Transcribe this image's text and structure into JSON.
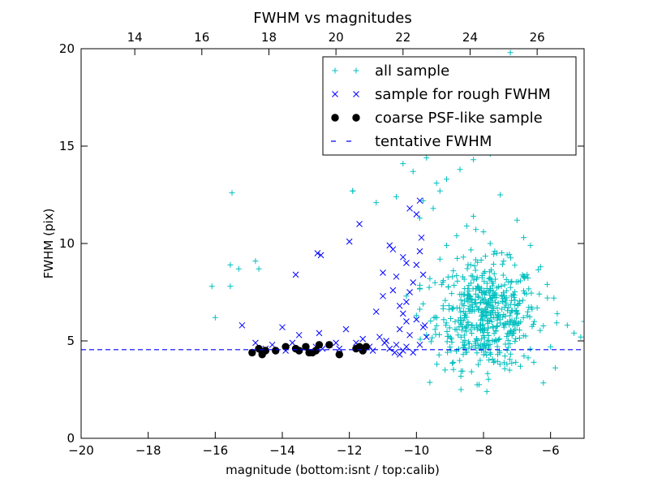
{
  "chart_data": {
    "type": "scatter",
    "title": "FWHM vs magnitudes",
    "xlabel": "magnitude (bottom:isnt / top:calib)",
    "ylabel": "FWHM (pix)",
    "xlim": [
      -20,
      -5
    ],
    "ylim": [
      0,
      20
    ],
    "top_xlim": [
      12.4,
      27.4
    ],
    "x_ticks": [
      -20,
      -18,
      -16,
      -14,
      -12,
      -10,
      -8,
      -6
    ],
    "x_tick_labels": [
      "−20",
      "−18",
      "−16",
      "−14",
      "−12",
      "−10",
      "−8",
      "−6"
    ],
    "top_ticks": [
      14,
      16,
      18,
      20,
      22,
      24,
      26
    ],
    "top_tick_labels": [
      "14",
      "16",
      "18",
      "20",
      "22",
      "24",
      "26"
    ],
    "y_ticks": [
      0,
      5,
      10,
      15,
      20
    ],
    "y_tick_labels": [
      "0",
      "5",
      "10",
      "15",
      "20"
    ],
    "grid": false,
    "legend_position": "top-right",
    "tentative_fwhm": 4.55,
    "series": [
      {
        "name": "all sample",
        "marker": "plus",
        "color": "#00bfbf",
        "points": [
          [
            -16.1,
            7.8
          ],
          [
            -16.0,
            6.2
          ],
          [
            -15.5,
            12.6
          ],
          [
            -15.55,
            8.9
          ],
          [
            -15.55,
            7.8
          ],
          [
            -15.3,
            8.7
          ],
          [
            -14.8,
            9.1
          ],
          [
            -14.7,
            8.7
          ],
          [
            -11.9,
            12.7
          ],
          [
            -11.9,
            12.7
          ],
          [
            -11.2,
            12.1
          ],
          [
            -10.6,
            12.4
          ],
          [
            -10.4,
            14.1
          ],
          [
            -10.1,
            13.7
          ],
          [
            -9.7,
            14.4
          ],
          [
            -9.4,
            13.1
          ],
          [
            -9.6,
            16.3
          ],
          [
            -9.2,
            16.0
          ],
          [
            -9.0,
            14.8
          ],
          [
            -8.8,
            15.7
          ],
          [
            -8.6,
            16.4
          ],
          [
            -8.4,
            17.2
          ],
          [
            -8.2,
            16.5
          ],
          [
            -8.0,
            17.5
          ],
          [
            -7.9,
            16.8
          ],
          [
            -7.7,
            18.0
          ],
          [
            -8.1,
            15.2
          ],
          [
            -8.5,
            15.0
          ],
          [
            -7.6,
            16.1
          ],
          [
            -7.2,
            19.8
          ],
          [
            -7.8,
            14.6
          ],
          [
            -8.3,
            14.3
          ],
          [
            -8.7,
            13.8
          ],
          [
            -9.1,
            13.3
          ],
          [
            -9.3,
            12.7
          ],
          [
            -9.5,
            11.8
          ],
          [
            -9.8,
            12.2
          ],
          [
            -9.9,
            11.3
          ],
          [
            -7.5,
            12.5
          ],
          [
            -7.0,
            11.2
          ],
          [
            -6.8,
            10.3
          ],
          [
            -6.6,
            9.9
          ],
          [
            -6.3,
            8.8
          ],
          [
            -6.1,
            7.9
          ],
          [
            -5.9,
            7.2
          ],
          [
            -5.8,
            6.4
          ],
          [
            -5.5,
            5.8
          ],
          [
            -5.3,
            5.4
          ],
          [
            -5.1,
            5.2
          ],
          [
            -5.0,
            6.0
          ],
          [
            -6.4,
            6.7
          ],
          [
            -6.0,
            4.7
          ],
          [
            -6.5,
            3.9
          ],
          [
            -6.9,
            3.7
          ],
          [
            -7.3,
            3.8
          ],
          [
            -7.7,
            3.9
          ],
          [
            -8.1,
            4.0
          ],
          [
            -8.9,
            3.9
          ],
          [
            -7.9,
            2.4
          ],
          [
            -10.0,
            6.3
          ],
          [
            -9.8,
            6.9
          ],
          [
            -9.7,
            5.3
          ],
          [
            -9.9,
            7.7
          ],
          [
            -9.6,
            8.2
          ],
          [
            -10.3,
            7.3
          ],
          [
            -9.3,
            9.2
          ],
          [
            -9.1,
            9.9
          ],
          [
            -8.8,
            10.4
          ],
          [
            -8.5,
            10.9
          ],
          [
            -8.3,
            11.4
          ],
          [
            -8.0,
            10.6
          ],
          [
            -7.8,
            10.0
          ],
          [
            -7.6,
            9.5
          ],
          [
            -7.4,
            9.1
          ],
          [
            -8.6,
            9.3
          ],
          [
            -8.9,
            8.6
          ],
          [
            -9.2,
            8.1
          ]
        ],
        "cluster": {
          "count": 520,
          "center": [
            -7.9,
            6.3
          ],
          "spread": [
            0.75,
            1.35
          ],
          "xrange": [
            -9.9,
            -5.1
          ],
          "yrange": [
            2.5,
            11.5
          ]
        }
      },
      {
        "name": "sample for rough FWHM",
        "marker": "x",
        "color": "#0000ff",
        "points": [
          [
            -15.2,
            5.8
          ],
          [
            -14.8,
            4.9
          ],
          [
            -14.5,
            4.6
          ],
          [
            -14.3,
            4.8
          ],
          [
            -14.0,
            5.7
          ],
          [
            -13.7,
            4.9
          ],
          [
            -13.5,
            5.3
          ],
          [
            -13.3,
            4.7
          ],
          [
            -13.2,
            4.4
          ],
          [
            -13.0,
            4.7
          ],
          [
            -12.9,
            5.4
          ],
          [
            -12.6,
            4.8
          ],
          [
            -12.3,
            4.6
          ],
          [
            -12.1,
            5.6
          ],
          [
            -11.8,
            4.9
          ],
          [
            -11.6,
            5.1
          ],
          [
            -11.4,
            4.7
          ],
          [
            -11.1,
            5.2
          ],
          [
            -13.6,
            8.4
          ],
          [
            -12.95,
            9.5
          ],
          [
            -12.85,
            9.4
          ],
          [
            -12.0,
            10.1
          ],
          [
            -11.7,
            11.0
          ],
          [
            -11.2,
            6.5
          ],
          [
            -10.9,
            5.0
          ],
          [
            -10.8,
            4.6
          ],
          [
            -10.6,
            4.8
          ],
          [
            -10.5,
            5.6
          ],
          [
            -10.4,
            4.5
          ],
          [
            -10.3,
            6.0
          ],
          [
            -10.2,
            7.5
          ],
          [
            -10.1,
            8.0
          ],
          [
            -10.2,
            11.8
          ],
          [
            -10.6,
            8.3
          ],
          [
            -10.4,
            9.3
          ],
          [
            -10.7,
            9.7
          ],
          [
            -11.0,
            8.5
          ],
          [
            -10.0,
            8.9
          ],
          [
            -9.9,
            9.6
          ],
          [
            -9.8,
            8.4
          ],
          [
            -10.0,
            11.5
          ],
          [
            -10.3,
            7.0
          ],
          [
            -10.7,
            7.6
          ],
          [
            -10.5,
            6.8
          ],
          [
            -10.0,
            6.1
          ],
          [
            -9.8,
            5.7
          ],
          [
            -9.9,
            4.8
          ],
          [
            -10.1,
            4.4
          ],
          [
            -10.3,
            4.7
          ],
          [
            -9.7,
            5.2
          ],
          [
            -9.75,
            5.8
          ],
          [
            -10.2,
            5.3
          ],
          [
            -10.4,
            6.4
          ],
          [
            -11.0,
            7.3
          ],
          [
            -10.8,
            9.9
          ],
          [
            -9.85,
            10.3
          ],
          [
            -10.3,
            9.0
          ],
          [
            -10.65,
            4.4
          ],
          [
            -12.8,
            4.6
          ],
          [
            -13.9,
            4.5
          ],
          [
            -14.9,
            4.4
          ],
          [
            -12.4,
            4.9
          ],
          [
            -11.3,
            4.5
          ],
          [
            -10.95,
            4.9
          ],
          [
            -9.9,
            12.2
          ],
          [
            -10.5,
            4.3
          ]
        ]
      },
      {
        "name": "coarse PSF-like sample",
        "marker": "dot",
        "color": "#000000",
        "points": [
          [
            -14.9,
            4.4
          ],
          [
            -14.7,
            4.6
          ],
          [
            -14.6,
            4.4
          ],
          [
            -14.5,
            4.5
          ],
          [
            -14.2,
            4.5
          ],
          [
            -13.9,
            4.7
          ],
          [
            -13.6,
            4.6
          ],
          [
            -13.5,
            4.5
          ],
          [
            -13.3,
            4.7
          ],
          [
            -13.2,
            4.4
          ],
          [
            -13.0,
            4.5
          ],
          [
            -12.9,
            4.8
          ],
          [
            -12.6,
            4.8
          ],
          [
            -12.3,
            4.3
          ],
          [
            -11.8,
            4.6
          ],
          [
            -11.7,
            4.7
          ],
          [
            -11.6,
            4.5
          ],
          [
            -11.5,
            4.7
          ],
          [
            -13.1,
            4.4
          ],
          [
            -14.6,
            4.3
          ]
        ]
      },
      {
        "name": "tentative FWHM",
        "marker": "dashed-line",
        "color": "#0000ff",
        "y": 4.55
      }
    ]
  }
}
